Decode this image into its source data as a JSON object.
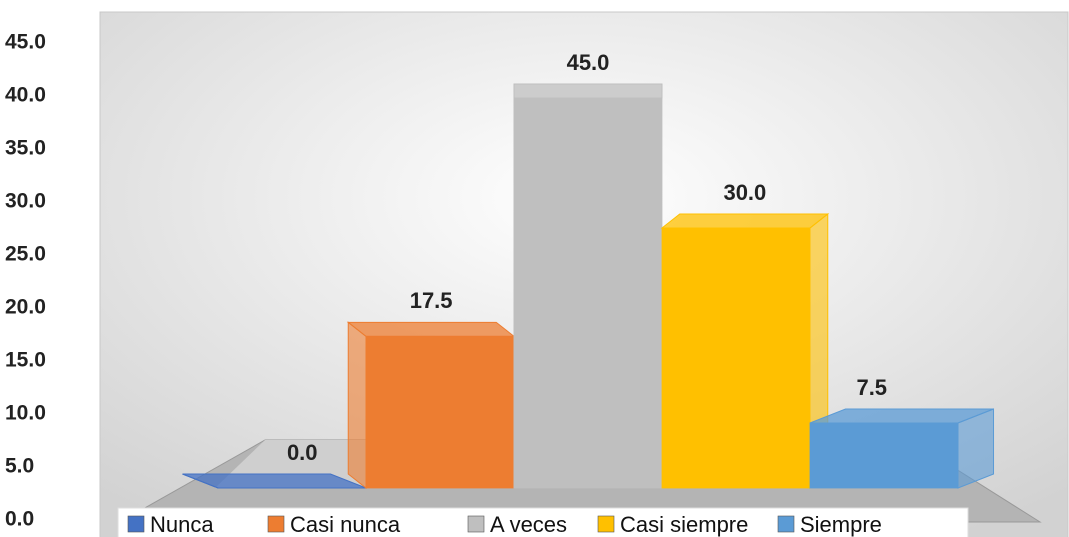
{
  "chart_data": {
    "type": "bar3d",
    "categories": [
      "Nunca",
      "Casi nunca",
      "A veces",
      "Casi siempre",
      "Siempre"
    ],
    "values": [
      0,
      17.5,
      45,
      30,
      7.5
    ],
    "value_labels": [
      "0.0",
      "17.5",
      "45.0",
      "30.0",
      "7.5"
    ],
    "colors": [
      "#4472c4",
      "#ed7d31",
      "#bfbfbf",
      "#ffc000",
      "#5b9bd5"
    ],
    "ylim": [
      0,
      45
    ],
    "yticks": [
      {
        "value": 0,
        "label": "0.0"
      },
      {
        "value": 5,
        "label": "5.0"
      },
      {
        "value": 10,
        "label": "10.0"
      },
      {
        "value": 15,
        "label": "15.0"
      },
      {
        "value": 20,
        "label": "20.0"
      },
      {
        "value": 25,
        "label": "25.0"
      },
      {
        "value": 30,
        "label": "30.0"
      },
      {
        "value": 35,
        "label": "35.0"
      },
      {
        "value": 40,
        "label": "40.0"
      },
      {
        "value": 45,
        "label": "45.0"
      }
    ],
    "legend": "bottom"
  }
}
